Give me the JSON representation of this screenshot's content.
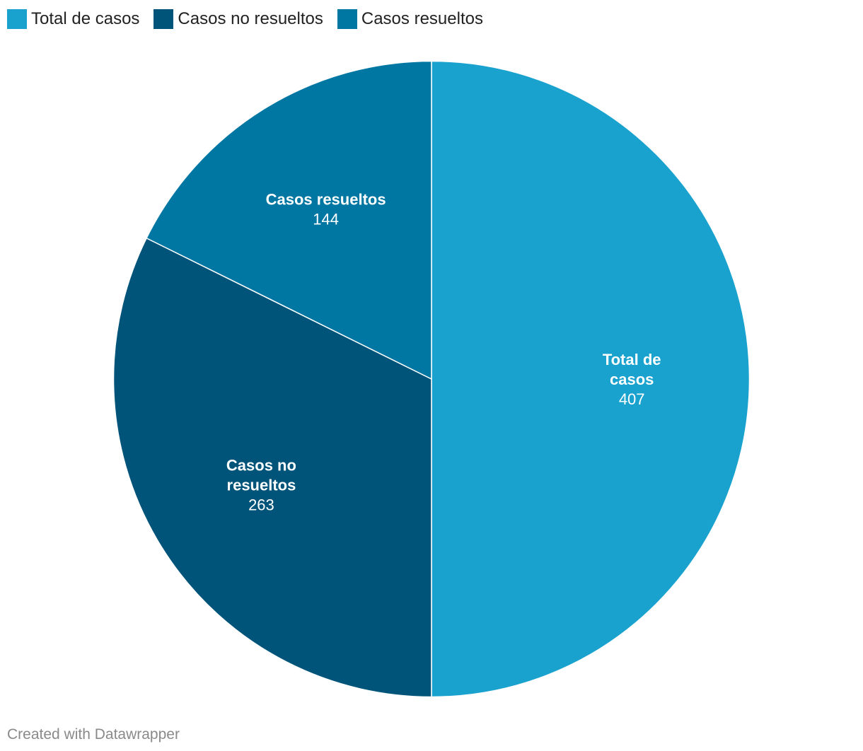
{
  "chart_data": {
    "type": "pie",
    "categories": [
      "Total de casos",
      "Casos no resueltos",
      "Casos resueltos"
    ],
    "values": [
      407,
      263,
      144
    ],
    "colors": [
      "#1aa2cf",
      "#00547a",
      "#0077a3"
    ],
    "label_lines": [
      [
        "Total de",
        "casos"
      ],
      [
        "Casos no",
        "resueltos"
      ],
      [
        "Casos resueltos"
      ]
    ],
    "start_angle_deg": 0,
    "direction": "clockwise",
    "legend_position": "top-left"
  },
  "footer": {
    "credit": "Created with Datawrapper"
  }
}
